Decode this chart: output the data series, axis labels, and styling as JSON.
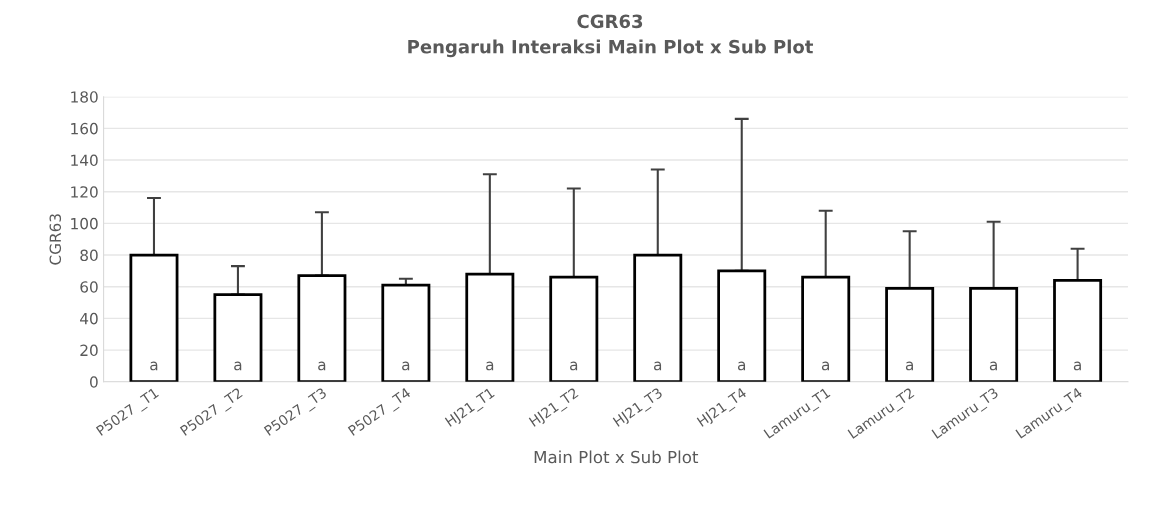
{
  "chart_data": {
    "type": "bar",
    "title": "CGR63",
    "subtitle": "Pengaruh Interaksi Main Plot x Sub Plot",
    "xlabel": "Main Plot x Sub Plot",
    "ylabel": "CGR63",
    "categories": [
      "P5027 _T1",
      "P5027 _T2",
      "P5027 _T3",
      "P5027 _T4",
      "HJ21_T1",
      "HJ21_T2",
      "HJ21_T3",
      "HJ21_T4",
      "Lamuru_T1",
      "Lamuru_T2",
      "Lamuru_T3",
      "Lamuru_T4"
    ],
    "values": [
      80,
      55,
      67,
      61,
      68,
      66,
      80,
      70,
      66,
      59,
      59,
      64
    ],
    "errors": [
      [
        80,
        116
      ],
      [
        55,
        73
      ],
      [
        67,
        107
      ],
      [
        61,
        65
      ],
      [
        68,
        131
      ],
      [
        66,
        122
      ],
      [
        80,
        134
      ],
      [
        70,
        166
      ],
      [
        66,
        108
      ],
      [
        59,
        95
      ],
      [
        59,
        101
      ],
      [
        64,
        84
      ]
    ],
    "color": "#ffffff",
    "ylim": [
      0,
      180
    ],
    "yticks": [
      0,
      20,
      40,
      60,
      80,
      100,
      120,
      140,
      160,
      180
    ],
    "grid": "y",
    "annotations": [
      {
        "text": "a",
        "x": "P5027 _T1",
        "y": 10
      },
      {
        "text": "a",
        "x": "P5027 _T2",
        "y": 10
      },
      {
        "text": "a",
        "x": "P5027 _T3",
        "y": 10
      },
      {
        "text": "a",
        "x": "P5027 _T4",
        "y": 10
      },
      {
        "text": "a",
        "x": "HJ21_T1",
        "y": 10
      },
      {
        "text": "a",
        "x": "HJ21_T2",
        "y": 10
      },
      {
        "text": "a",
        "x": "HJ21_T3",
        "y": 10
      },
      {
        "text": "a",
        "x": "HJ21_T4",
        "y": 10
      },
      {
        "text": "a",
        "x": "Lamuru_T1",
        "y": 10
      },
      {
        "text": "a",
        "x": "Lamuru_T2",
        "y": 10
      },
      {
        "text": "a",
        "x": "Lamuru_T3",
        "y": 10
      },
      {
        "text": "a",
        "x": "Lamuru_T4",
        "y": 10
      }
    ]
  }
}
